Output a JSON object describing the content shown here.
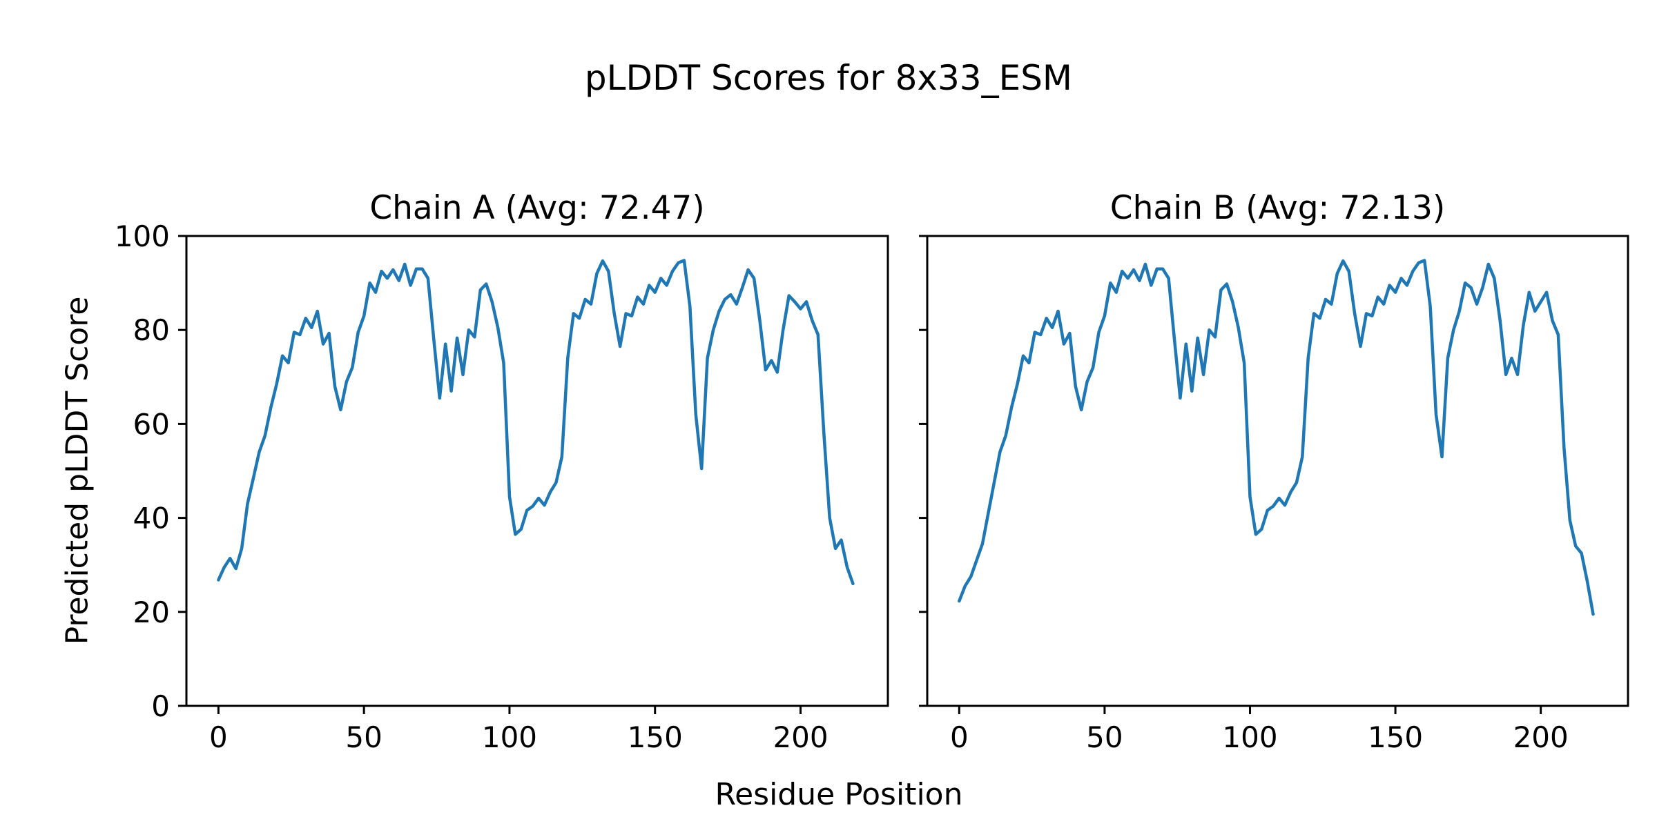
{
  "suptitle": "pLDDT Scores for 8x33_ESM",
  "xlabel": "Residue Position",
  "ylabel": "Predicted pLDDT Score",
  "colors": {
    "line": "#1f77b4",
    "axis": "#000000",
    "text": "#000000",
    "background": "#ffffff"
  },
  "chart_data": [
    {
      "type": "line",
      "title": "Chain A (Avg: 72.47)",
      "average": 72.47,
      "xlim": [
        -11,
        230
      ],
      "ylim": [
        0,
        100
      ],
      "xticks": [
        0,
        50,
        100,
        150,
        200
      ],
      "yticks": [
        0,
        20,
        40,
        60,
        80,
        100
      ],
      "show_ytick_labels": true,
      "grid": false,
      "color": "#1f77b4",
      "x": [
        0,
        2,
        4,
        6,
        8,
        10,
        12,
        14,
        16,
        18,
        20,
        22,
        24,
        26,
        28,
        30,
        32,
        34,
        36,
        38,
        40,
        42,
        44,
        46,
        48,
        50,
        52,
        54,
        56,
        58,
        60,
        62,
        64,
        66,
        68,
        70,
        72,
        74,
        76,
        78,
        80,
        82,
        84,
        86,
        88,
        90,
        92,
        94,
        96,
        98,
        100,
        102,
        104,
        106,
        108,
        110,
        112,
        114,
        116,
        118,
        120,
        122,
        124,
        126,
        128,
        130,
        132,
        134,
        136,
        138,
        140,
        142,
        144,
        146,
        148,
        150,
        152,
        154,
        156,
        158,
        160,
        162,
        164,
        166,
        168,
        170,
        172,
        174,
        176,
        178,
        180,
        182,
        184,
        186,
        188,
        190,
        192,
        194,
        196,
        198,
        200,
        202,
        204,
        206,
        208,
        210,
        212,
        214,
        216,
        218
      ],
      "y": [
        26.8,
        29.5,
        31.4,
        29.2,
        33.5,
        43.0,
        48.5,
        54.0,
        57.5,
        63.5,
        68.5,
        74.5,
        73.0,
        79.5,
        79.0,
        82.5,
        80.5,
        84.0,
        77.0,
        79.3,
        68.0,
        63.0,
        69.0,
        72.0,
        79.5,
        83.0,
        90.0,
        88.0,
        92.5,
        91.0,
        92.8,
        90.5,
        94.0,
        89.5,
        93.0,
        93.0,
        91.0,
        78.0,
        65.5,
        77.0,
        67.0,
        78.3,
        70.5,
        80.0,
        78.5,
        88.5,
        89.8,
        86.0,
        80.5,
        73.0,
        44.5,
        36.5,
        37.6,
        41.6,
        42.5,
        44.2,
        42.7,
        45.5,
        47.5,
        53.0,
        74.0,
        83.5,
        82.5,
        86.5,
        85.5,
        92.0,
        94.7,
        92.5,
        83.5,
        76.5,
        83.5,
        83.0,
        87.0,
        85.5,
        89.5,
        88.0,
        91.0,
        89.5,
        92.5,
        94.3,
        94.8,
        85.0,
        62.0,
        50.5,
        74.0,
        80.0,
        84.0,
        86.5,
        87.5,
        85.5,
        89.0,
        92.8,
        91.0,
        82.0,
        71.5,
        73.5,
        71.0,
        80.0,
        87.3,
        86.0,
        84.5,
        86.0,
        82.0,
        79.0,
        58.0,
        40.0,
        33.5,
        35.3,
        29.5,
        26.0
      ]
    },
    {
      "type": "line",
      "title": "Chain B (Avg: 72.13)",
      "average": 72.13,
      "xlim": [
        -11,
        230
      ],
      "ylim": [
        0,
        100
      ],
      "xticks": [
        0,
        50,
        100,
        150,
        200
      ],
      "yticks": [
        0,
        20,
        40,
        60,
        80,
        100
      ],
      "show_ytick_labels": false,
      "grid": false,
      "color": "#1f77b4",
      "x": [
        0,
        2,
        4,
        6,
        8,
        10,
        12,
        14,
        16,
        18,
        20,
        22,
        24,
        26,
        28,
        30,
        32,
        34,
        36,
        38,
        40,
        42,
        44,
        46,
        48,
        50,
        52,
        54,
        56,
        58,
        60,
        62,
        64,
        66,
        68,
        70,
        72,
        74,
        76,
        78,
        80,
        82,
        84,
        86,
        88,
        90,
        92,
        94,
        96,
        98,
        100,
        102,
        104,
        106,
        108,
        110,
        112,
        114,
        116,
        118,
        120,
        122,
        124,
        126,
        128,
        130,
        132,
        134,
        136,
        138,
        140,
        142,
        144,
        146,
        148,
        150,
        152,
        154,
        156,
        158,
        160,
        162,
        164,
        166,
        168,
        170,
        172,
        174,
        176,
        178,
        180,
        182,
        184,
        186,
        188,
        190,
        192,
        194,
        196,
        198,
        200,
        202,
        204,
        206,
        208,
        210,
        212,
        214,
        216,
        218
      ],
      "y": [
        22.3,
        25.5,
        27.5,
        31.0,
        34.5,
        41.0,
        47.5,
        54.0,
        57.5,
        63.5,
        68.5,
        74.5,
        73.0,
        79.5,
        79.0,
        82.5,
        80.5,
        84.0,
        77.0,
        79.3,
        68.0,
        63.0,
        69.0,
        72.0,
        79.5,
        83.0,
        90.0,
        88.0,
        92.5,
        91.0,
        92.8,
        90.5,
        94.0,
        89.5,
        93.0,
        93.0,
        91.0,
        78.0,
        65.5,
        77.0,
        67.0,
        78.3,
        70.5,
        80.0,
        78.5,
        88.5,
        89.8,
        86.0,
        80.5,
        73.0,
        44.5,
        36.5,
        37.6,
        41.6,
        42.5,
        44.2,
        42.7,
        45.5,
        47.5,
        53.0,
        74.0,
        83.5,
        82.5,
        86.5,
        85.5,
        92.0,
        94.7,
        92.5,
        83.5,
        76.5,
        83.5,
        83.0,
        87.0,
        85.5,
        89.5,
        88.0,
        91.0,
        89.5,
        92.5,
        94.3,
        94.8,
        85.0,
        62.0,
        53.0,
        74.0,
        80.0,
        84.0,
        90.0,
        89.0,
        85.5,
        89.0,
        94.0,
        91.0,
        82.0,
        70.5,
        74.0,
        70.5,
        81.0,
        88.0,
        84.0,
        86.0,
        88.0,
        82.0,
        79.0,
        55.0,
        39.5,
        34.0,
        32.5,
        26.5,
        19.5
      ]
    }
  ]
}
